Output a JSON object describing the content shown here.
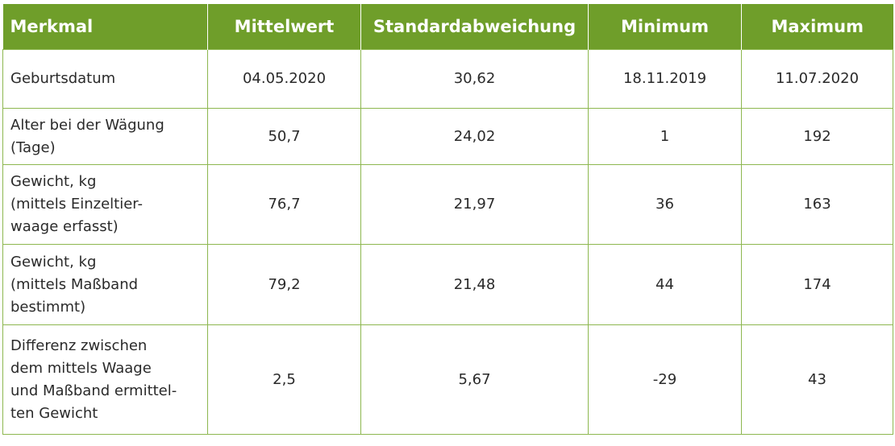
{
  "table": {
    "headers": [
      "Merkmal",
      "Mittelwert",
      "Standardabweichung",
      "Minimum",
      "Maximum"
    ],
    "rows": [
      {
        "label_lines": [
          "Geburtsdatum"
        ],
        "mean": "04.05.2020",
        "sd": "30,62",
        "min": "18.11.2019",
        "max": "11.07.2020"
      },
      {
        "label_lines": [
          "Alter bei der Wägung",
          "(Tage)"
        ],
        "mean": "50,7",
        "sd": "24,02",
        "min": "1",
        "max": "192"
      },
      {
        "label_lines": [
          "Gewicht, kg",
          "(mittels Einzeltier-",
          "waage erfasst)"
        ],
        "mean": "76,7",
        "sd": "21,97",
        "min": "36",
        "max": "163"
      },
      {
        "label_lines": [
          "Gewicht, kg",
          "(mittels Maßband",
          "bestimmt)"
        ],
        "mean": "79,2",
        "sd": "21,48",
        "min": "44",
        "max": "174"
      },
      {
        "label_lines": [
          "Differenz zwischen",
          "dem mittels Waage",
          "und Maßband ermittel-",
          "ten Gewicht"
        ],
        "mean": "2,5",
        "sd": "5,67",
        "min": "-29",
        "max": "43"
      }
    ]
  },
  "colors": {
    "header_bg": "#6f9e2a",
    "border": "#8db74f",
    "text": "#2a2a2a"
  }
}
